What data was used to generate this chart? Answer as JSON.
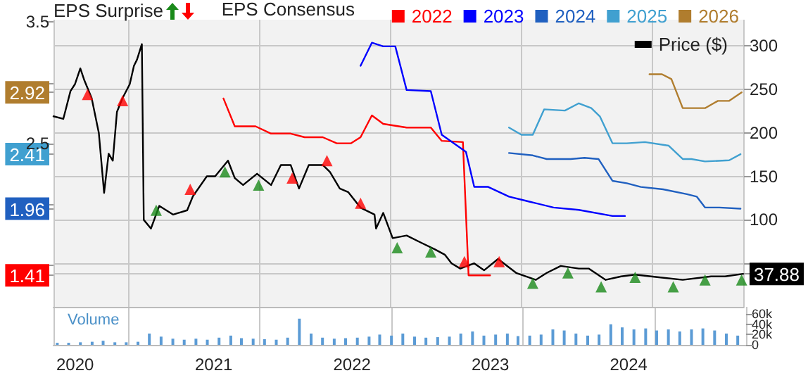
{
  "chart_data": {
    "type": "line",
    "legend_title": "EPS Consensus",
    "annotations": [
      "EPS Surprise"
    ],
    "y3label": "Volume",
    "xlim": [
      "2019-11-05",
      "2024-11-06"
    ],
    "xticks": [
      "2020",
      "2021",
      "2022",
      "2023",
      "2024"
    ],
    "ylim": [
      1.15,
      3.52
    ],
    "yticks": [
      {
        "value": 1.41,
        "label": "1.41"
      },
      {
        "value": 1.5,
        "label": null
      },
      {
        "value": 1.96,
        "label": "1.96"
      },
      {
        "value": 2,
        "label": null
      },
      {
        "value": 2.41,
        "label": "2.41"
      },
      2.5,
      {
        "value": 2.92,
        "label": "2.92"
      },
      {
        "value": 3,
        "label": null
      },
      3.5
    ],
    "y2lim": [
      0,
      330
    ],
    "y2ticks": [
      {
        "value": 37.88,
        "label": "37.88"
      },
      {
        "value": 50,
        "label": null
      },
      100,
      150,
      200,
      250,
      300
    ],
    "y3lim": [
      0,
      74000
    ],
    "y3ticks": [
      0,
      {
        "value": 20000,
        "label": "20k"
      },
      {
        "value": 40000,
        "label": "40k"
      },
      {
        "value": 60000,
        "label": "60k"
      }
    ],
    "grid": true,
    "legend": "top right",
    "marker": "none",
    "line_style": "solid",
    "series": [
      {
        "name": "2022",
        "color": "#ff0000",
        "x": [
          "2021-01-28",
          "2021-02-27",
          "2021-04-23",
          "2021-06-03",
          "2021-07-25",
          "2021-08-31",
          "2021-10-18",
          "2021-11-24",
          "2022-01-01",
          "2022-01-26",
          "2022-02-25",
          "2022-03-27",
          "2022-05-28",
          "2022-07-31",
          "2022-08-29",
          "2022-10-24",
          "2022-11-08",
          "2023-01-04"
        ],
        "values": [
          2.87,
          2.64,
          2.64,
          2.58,
          2.58,
          2.55,
          2.55,
          2.5,
          2.5,
          2.55,
          2.73,
          2.66,
          2.63,
          2.63,
          2.52,
          2.51,
          1.41,
          1.41
        ]
      },
      {
        "name": "2023",
        "color": "#0000ff",
        "x": [
          "2022-01-26",
          "2022-02-25",
          "2022-03-27",
          "2022-04-28",
          "2022-05-28",
          "2022-07-31",
          "2022-08-29",
          "2022-11-01",
          "2022-11-23",
          "2022-12-30",
          "2023-02-23",
          "2023-04-16",
          "2023-06-21",
          "2023-08-27",
          "2023-11-24",
          "2023-12-27"
        ],
        "values": [
          3.14,
          3.33,
          3.3,
          3.3,
          2.94,
          2.93,
          2.57,
          2.43,
          2.14,
          2.14,
          2.06,
          2.02,
          1.97,
          1.95,
          1.9,
          1.9
        ]
      },
      {
        "name": "2024",
        "color": "#2060c0",
        "x": [
          "2023-02-23",
          "2023-04-27",
          "2023-06-03",
          "2023-08-05",
          "2023-09-11",
          "2023-10-18",
          "2023-11-24",
          "2024-01-01",
          "2024-02-07",
          "2024-04-06",
          "2024-06-08",
          "2024-07-04",
          "2024-07-26",
          "2024-09-02",
          "2024-10-28"
        ],
        "values": [
          2.42,
          2.4,
          2.37,
          2.37,
          2.38,
          2.37,
          2.19,
          2.17,
          2.14,
          2.12,
          2.08,
          2.06,
          1.97,
          1.97,
          1.96
        ]
      },
      {
        "name": "2025",
        "color": "#40a0d0",
        "x": [
          "2023-02-23",
          "2023-03-28",
          "2023-04-27",
          "2023-05-27",
          "2023-07-21",
          "2023-08-27",
          "2023-09-29",
          "2023-10-22",
          "2023-11-24",
          "2024-01-01",
          "2024-02-18",
          "2024-04-21",
          "2024-05-28",
          "2024-06-20",
          "2024-07-26",
          "2024-09-28",
          "2024-10-28"
        ],
        "values": [
          2.63,
          2.57,
          2.57,
          2.78,
          2.77,
          2.83,
          2.79,
          2.72,
          2.5,
          2.5,
          2.51,
          2.48,
          2.37,
          2.37,
          2.35,
          2.36,
          2.41
        ]
      },
      {
        "name": "2026",
        "color": "#b07d2e",
        "x": [
          "2024-03-01",
          "2024-04-03",
          "2024-04-28",
          "2024-05-28",
          "2024-07-26",
          "2024-08-29",
          "2024-09-28",
          "2024-10-31"
        ],
        "values": [
          3.07,
          3.07,
          3.03,
          2.79,
          2.79,
          2.85,
          2.85,
          2.92
        ]
      },
      {
        "name": "Price ($)",
        "color": "#000000",
        "axis": "y2",
        "x": [
          "2019-11-05",
          "2019-12-01",
          "2019-12-20",
          "2020-01-01",
          "2020-01-15",
          "2020-01-26",
          "2020-02-14",
          "2020-03-04",
          "2020-03-18",
          "2020-03-30",
          "2020-04-10",
          "2020-04-21",
          "2020-05-06",
          "2020-05-25",
          "2020-06-05",
          "2020-06-13",
          "2020-06-26",
          "2020-07-01",
          "2020-07-20",
          "2020-08-11",
          "2020-09-17",
          "2020-10-24",
          "2020-11-08",
          "2020-12-15",
          "2021-01-06",
          "2021-02-09",
          "2021-02-27",
          "2021-03-21",
          "2021-04-27",
          "2021-06-03",
          "2021-06-29",
          "2021-07-25",
          "2021-08-16",
          "2021-09-11",
          "2021-10-18",
          "2021-11-06",
          "2021-12-02",
          "2021-12-24",
          "2022-01-26",
          "2022-03-04",
          "2022-03-08",
          "2022-03-27",
          "2022-04-21",
          "2022-05-28",
          "2022-07-04",
          "2022-08-11",
          "2022-09-06",
          "2022-09-24",
          "2022-10-17",
          "2022-11-23",
          "2022-12-19",
          "2023-01-25",
          "2023-03-14",
          "2023-05-05",
          "2023-06-03",
          "2023-07-10",
          "2023-08-27",
          "2023-09-22",
          "2023-11-06",
          "2023-12-17",
          "2024-01-23",
          "2024-03-26",
          "2024-05-28",
          "2024-08-11",
          "2024-09-17",
          "2024-11-04"
        ],
        "values": [
          219,
          216,
          248,
          256,
          274,
          260,
          240,
          200,
          131,
          176,
          168,
          224,
          240,
          256,
          277,
          284,
          302,
          100,
          90,
          116,
          106,
          111,
          127,
          150,
          150,
          168,
          148,
          140,
          153,
          140,
          163,
          163,
          136,
          163,
          163,
          155,
          136,
          132,
          114,
          106,
          90,
          108,
          79,
          82,
          74,
          66,
          60,
          50,
          44,
          50,
          42,
          55,
          39,
          31,
          39,
          47,
          44,
          44,
          31,
          35,
          37,
          34,
          31,
          35,
          35,
          37.88
        ]
      },
      {
        "type": "scatter",
        "marker": "triangle",
        "color": "#1a8a1a",
        "axis": "y2",
        "x": [
          "2020-08-03",
          "2021-02-01",
          "2021-05-01",
          "2022-05-03",
          "2022-07-31",
          "2023-04-27",
          "2023-07-29",
          "2023-10-25",
          "2024-01-23",
          "2024-05-03",
          "2024-07-26",
          "2024-10-31"
        ],
        "values": [
          111,
          155,
          140,
          68,
          63,
          27,
          39,
          23,
          34,
          23,
          31,
          31
        ]
      },
      {
        "type": "scatter",
        "marker": "triangle",
        "color": "#ff0000",
        "axis": "y2",
        "x": [
          "2020-02-03",
          "2020-05-06",
          "2020-11-01",
          "2021-07-29",
          "2021-10-29",
          "2022-01-26",
          "2022-10-28",
          "2023-01-28"
        ],
        "values": [
          244,
          237,
          135,
          148,
          168,
          119,
          52,
          52
        ]
      },
      {
        "type": "bar",
        "color": "#5b9bd5",
        "axis": "y3",
        "x": [
          "2019-11-15",
          "2019-12-15",
          "2020-01-15",
          "2020-02-15",
          "2020-03-15",
          "2020-04-15",
          "2020-05-15",
          "2020-06-15",
          "2020-07-15",
          "2020-08-15",
          "2020-09-15",
          "2020-10-15",
          "2020-11-15",
          "2020-12-15",
          "2021-01-15",
          "2021-02-15",
          "2021-03-15",
          "2021-04-15",
          "2021-05-15",
          "2021-06-15",
          "2021-07-15",
          "2021-08-15",
          "2021-09-15",
          "2021-10-15",
          "2021-11-15",
          "2021-12-15",
          "2022-01-15",
          "2022-02-15",
          "2022-03-15",
          "2022-04-15",
          "2022-05-15",
          "2022-06-15",
          "2022-07-15",
          "2022-08-15",
          "2022-09-15",
          "2022-10-15",
          "2022-11-15",
          "2022-12-15",
          "2023-01-15",
          "2023-02-15",
          "2023-03-15",
          "2023-04-15",
          "2023-05-15",
          "2023-06-15",
          "2023-07-15",
          "2023-08-15",
          "2023-09-15",
          "2023-10-15",
          "2023-11-15",
          "2023-12-15",
          "2024-01-15",
          "2024-02-15",
          "2024-03-15",
          "2024-04-15",
          "2024-05-15",
          "2024-06-15",
          "2024-07-15",
          "2024-08-15",
          "2024-09-15",
          "2024-10-15"
        ],
        "values": [
          4000,
          4000,
          5000,
          6000,
          8000,
          5000,
          5000,
          6000,
          22000,
          16000,
          12000,
          10000,
          12000,
          10000,
          14000,
          18000,
          13000,
          12000,
          11000,
          10000,
          14000,
          51000,
          22000,
          14000,
          12000,
          13000,
          14000,
          16000,
          20000,
          18000,
          22000,
          16000,
          14000,
          15000,
          16000,
          22000,
          26000,
          18000,
          20000,
          22000,
          17000,
          18000,
          20000,
          30000,
          28000,
          22000,
          18000,
          20000,
          40000,
          34000,
          30000,
          32000,
          28000,
          30000,
          26000,
          30000,
          32000,
          28000,
          22000,
          18000
        ]
      }
    ]
  }
}
